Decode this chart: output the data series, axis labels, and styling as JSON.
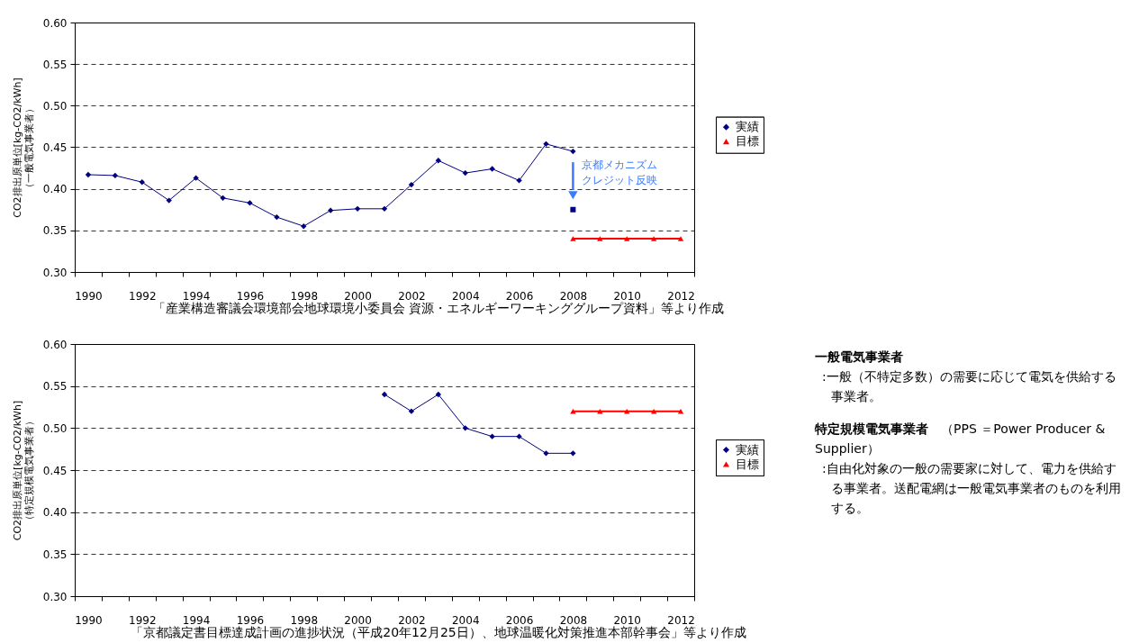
{
  "chart_data": [
    {
      "type": "line",
      "ylabel": "CO2排出原単位[kg-CO2/kWh]\n（一般電気事業者）",
      "categories": [
        "1990",
        null,
        "1992",
        null,
        "1994",
        null,
        "1996",
        null,
        "1998",
        null,
        "2000",
        null,
        "2002",
        null,
        "2004",
        null,
        "2006",
        null,
        "2008",
        null,
        "2010",
        null,
        "2012"
      ],
      "series": [
        {
          "name": "実績",
          "type": "line",
          "marker": "diamond",
          "color": "#000080",
          "values": [
            0.417,
            0.416,
            0.408,
            0.386,
            0.413,
            0.389,
            0.383,
            0.366,
            0.355,
            0.374,
            0.376,
            0.376,
            0.405,
            0.434,
            0.419,
            0.424,
            0.41,
            0.454,
            0.445,
            null,
            null,
            null,
            null
          ]
        },
        {
          "name": "目標",
          "type": "line",
          "marker": "triangle",
          "color": "#ff0000",
          "values": [
            null,
            null,
            null,
            null,
            null,
            null,
            null,
            null,
            null,
            null,
            null,
            null,
            null,
            null,
            null,
            null,
            null,
            null,
            0.34,
            0.34,
            0.34,
            0.34,
            0.34
          ]
        },
        {
          "type": "scatter",
          "marker": "square",
          "color": "#000080",
          "values": [
            null,
            null,
            null,
            null,
            null,
            null,
            null,
            null,
            null,
            null,
            null,
            null,
            null,
            null,
            null,
            null,
            null,
            null,
            0.375,
            null,
            null,
            null,
            null
          ]
        }
      ],
      "ylim": [
        0.3,
        0.6
      ],
      "yticks": [
        {
          "value": 0.3,
          "label": "0.30"
        },
        {
          "value": 0.35,
          "label": "0.35"
        },
        {
          "value": 0.4,
          "label": "0.40"
        },
        {
          "value": 0.45,
          "label": "0.45"
        },
        {
          "value": 0.5,
          "label": "0.50"
        },
        {
          "value": 0.55,
          "label": "0.55"
        },
        {
          "value": 0.6,
          "label": "0.60"
        }
      ],
      "grid": "y",
      "legend": "right",
      "line_style": "solid",
      "annotations": [
        "京都メカニズムクレジット反映",
        "「産業構造審議会環境部会地球環境小委員会 資源・エネルギーワーキンググループ資料」等より作成"
      ]
    },
    {
      "type": "line",
      "ylabel": "CO2排出原単位[kg-CO2/kWh]\n（特定規模電気事業者）",
      "categories": [
        "1990",
        null,
        "1992",
        null,
        "1994",
        null,
        "1996",
        null,
        "1998",
        null,
        "2000",
        null,
        "2002",
        null,
        "2004",
        null,
        "2006",
        null,
        "2008",
        null,
        "2010",
        null,
        "2012"
      ],
      "series": [
        {
          "name": "実績",
          "type": "line",
          "marker": "diamond",
          "color": "#000080",
          "values": [
            null,
            null,
            null,
            null,
            null,
            null,
            null,
            null,
            null,
            null,
            null,
            0.54,
            0.52,
            0.54,
            0.5,
            0.49,
            0.49,
            0.47,
            0.47,
            null,
            null,
            null,
            null
          ]
        },
        {
          "name": "目標",
          "type": "line",
          "marker": "triangle",
          "color": "#ff0000",
          "values": [
            null,
            null,
            null,
            null,
            null,
            null,
            null,
            null,
            null,
            null,
            null,
            null,
            null,
            null,
            null,
            null,
            null,
            null,
            0.52,
            0.52,
            0.52,
            0.52,
            0.52
          ]
        }
      ],
      "ylim": [
        0.3,
        0.6
      ],
      "yticks": [
        {
          "value": 0.3,
          "label": "0.30"
        },
        {
          "value": 0.35,
          "label": "0.35"
        },
        {
          "value": 0.4,
          "label": "0.40"
        },
        {
          "value": 0.45,
          "label": "0.45"
        },
        {
          "value": 0.5,
          "label": "0.50"
        },
        {
          "value": 0.55,
          "label": "0.55"
        },
        {
          "value": 0.6,
          "label": "0.60"
        }
      ],
      "grid": "y",
      "legend": "right",
      "line_style": "solid",
      "annotations": [
        "「京都議定書目標達成計画の進捗状況（平成20年12月25日）、地球温暖化対策推進本部幹事会」等より作成"
      ]
    },
    {
      "type": "other",
      "annotations": [
        "一般電気事業者",
        ":一般（不特定多数）の需要に応じて電気を供給する事業者。",
        "特定規模電気事業者",
        "（PPS ＝Power Producer & Supplier）",
        ":自由化対象の一般の需要家に対して、電力を供給する事業者。送配電網は一般電気事業者のものを利用する。"
      ]
    }
  ]
}
